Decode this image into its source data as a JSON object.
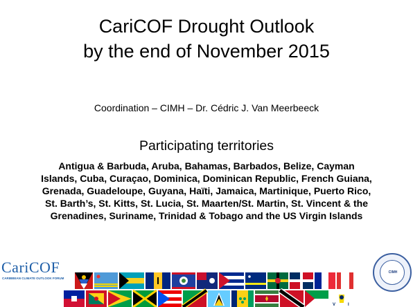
{
  "title_line1": "CariCOF Drought Outlook",
  "title_line2": "by the end of November 2015",
  "coordination": "Coordination – CIMH – Dr. Cédric J. Van Meerbeeck",
  "participating_heading": "Participating territories",
  "territories_text": "Antigua & Barbuda, Aruba, Bahamas, Barbados, Belize, Cayman Islands, Cuba, Curaçao, Dominica, Dominican Republic, French Guiana, Grenada, Guadeloupe, Guyana, Haïti, Jamaica, Martinique, Puerto Rico, St. Barth’s, St. Kitts, St. Lucia, St. Maarten/St. Martin, St. Vincent & the Grenadines, Suriname, Trinidad & Tobago and the US Virgin Islands",
  "logo": {
    "name": "CariCOF",
    "subtitle": "CARIBBEAN CLIMATE OUTLOOK FORUM"
  },
  "seal": {
    "text": "CIMH"
  },
  "colors": {
    "logo_blue": "#1f5fa8",
    "seal_blue": "#3b5fa0"
  }
}
